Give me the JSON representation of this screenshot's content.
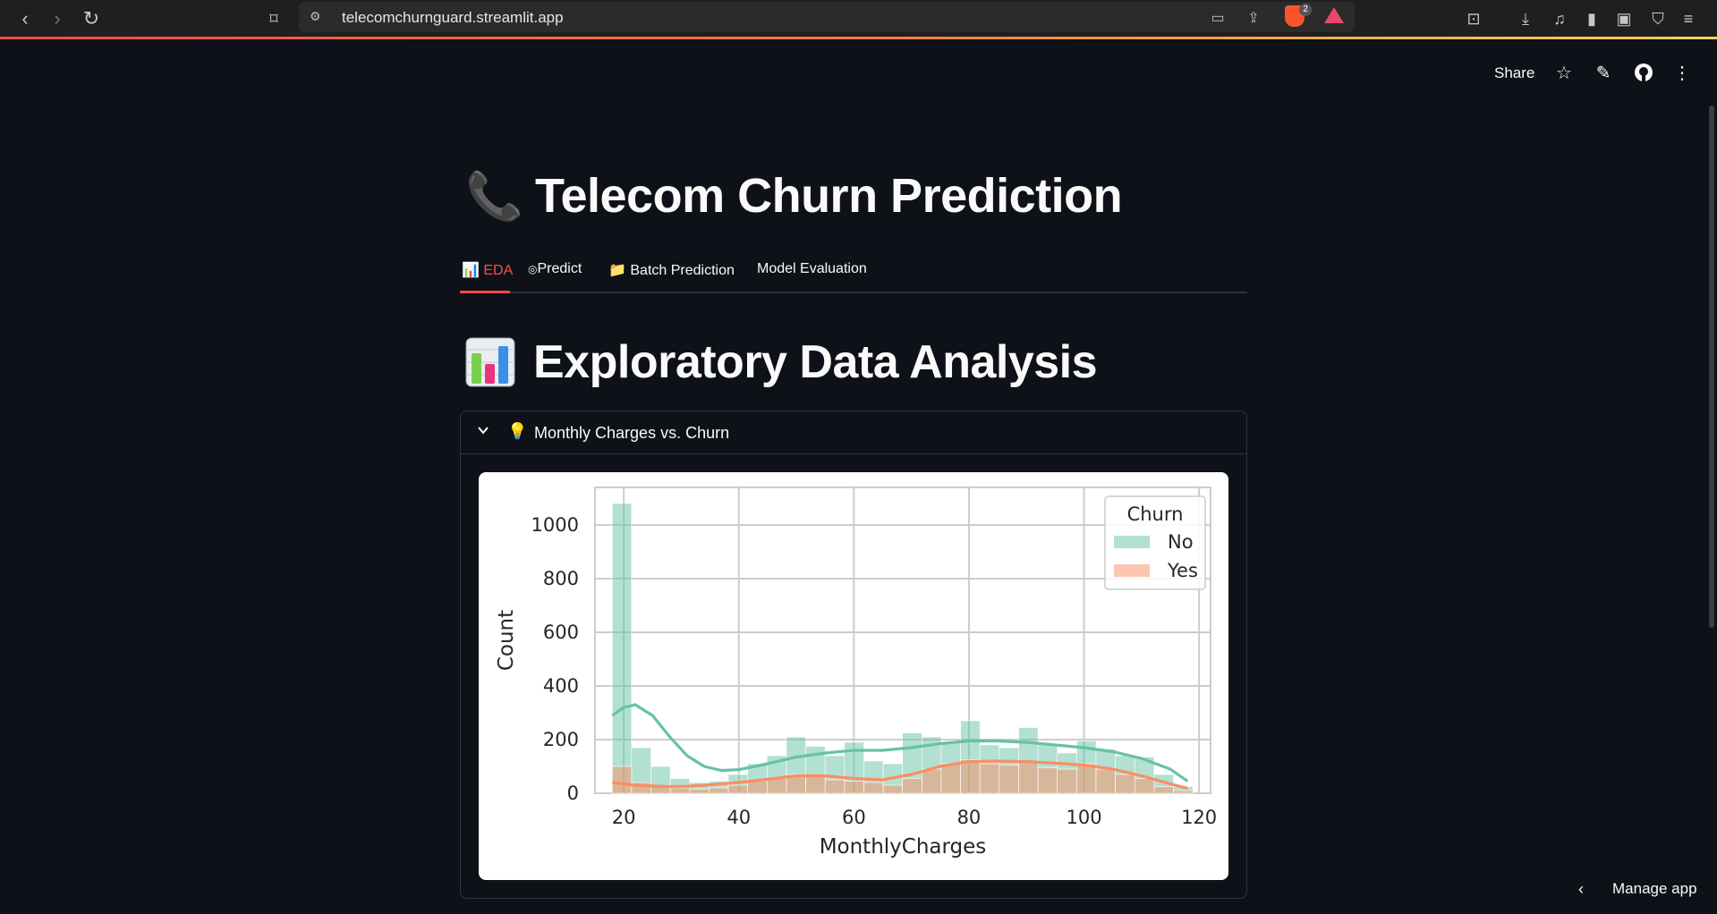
{
  "browser": {
    "url": "telecomchurnguard.streamlit.app",
    "shield_badge": "2"
  },
  "header": {
    "share_label": "Share"
  },
  "app": {
    "title_emoji": "📞",
    "title": "Telecom Churn Prediction",
    "tabs": [
      {
        "icon": "📊",
        "label": "EDA",
        "active": true
      },
      {
        "icon": "◎",
        "label": "Predict",
        "active": false
      },
      {
        "icon": "📁",
        "label": "Batch Prediction",
        "active": false
      },
      {
        "icon": "",
        "label": "Model Evaluation",
        "active": false
      }
    ],
    "section_title": "Exploratory Data Analysis",
    "expander_label": "Monthly Charges vs. Churn",
    "manage_label": "Manage app"
  },
  "chart_data": {
    "type": "bar",
    "subtype": "overlaid histogram with kde",
    "xlabel": "MonthlyCharges",
    "ylabel": "Count",
    "xlim": [
      15,
      122
    ],
    "ylim": [
      0,
      1140
    ],
    "xticks": [
      20,
      40,
      60,
      80,
      100,
      120
    ],
    "yticks": [
      0,
      200,
      400,
      600,
      800,
      1000
    ],
    "grid": true,
    "legend": {
      "title": "Churn",
      "placement": "top-right"
    },
    "bin_edges": [
      18,
      21.36,
      24.73,
      28.09,
      31.45,
      34.82,
      38.18,
      41.55,
      44.91,
      48.27,
      51.64,
      55,
      58.36,
      61.73,
      65.09,
      68.45,
      71.82,
      75.18,
      78.55,
      81.91,
      85.27,
      88.64,
      92,
      95.36,
      98.73,
      102.09,
      105.45,
      108.82,
      112.18,
      115.55,
      118.91
    ],
    "series": [
      {
        "name": "No",
        "color": "#66c2a5",
        "values": [
          1080,
          170,
          100,
          55,
          40,
          45,
          70,
          110,
          140,
          210,
          175,
          140,
          190,
          120,
          110,
          225,
          210,
          190,
          270,
          180,
          170,
          245,
          180,
          150,
          195,
          165,
          140,
          135,
          70,
          25
        ],
        "kde": [
          [
            18,
            290
          ],
          [
            20,
            320
          ],
          [
            22,
            330
          ],
          [
            25,
            290
          ],
          [
            28,
            210
          ],
          [
            31,
            140
          ],
          [
            34,
            100
          ],
          [
            37,
            85
          ],
          [
            40,
            88
          ],
          [
            45,
            110
          ],
          [
            50,
            135
          ],
          [
            55,
            150
          ],
          [
            60,
            160
          ],
          [
            65,
            160
          ],
          [
            70,
            170
          ],
          [
            75,
            185
          ],
          [
            80,
            195
          ],
          [
            85,
            195
          ],
          [
            90,
            190
          ],
          [
            95,
            180
          ],
          [
            100,
            170
          ],
          [
            105,
            155
          ],
          [
            110,
            130
          ],
          [
            115,
            90
          ],
          [
            118,
            45
          ]
        ]
      },
      {
        "name": "Yes",
        "color": "#fc8d62",
        "values": [
          100,
          40,
          30,
          20,
          15,
          20,
          30,
          45,
          55,
          70,
          65,
          50,
          45,
          40,
          30,
          55,
          90,
          110,
          125,
          110,
          105,
          115,
          95,
          90,
          110,
          90,
          70,
          55,
          25,
          10
        ],
        "kde": [
          [
            18,
            40
          ],
          [
            20,
            35
          ],
          [
            22,
            30
          ],
          [
            25,
            27
          ],
          [
            28,
            25
          ],
          [
            31,
            26
          ],
          [
            34,
            30
          ],
          [
            37,
            35
          ],
          [
            40,
            40
          ],
          [
            45,
            52
          ],
          [
            50,
            65
          ],
          [
            55,
            65
          ],
          [
            60,
            55
          ],
          [
            65,
            50
          ],
          [
            70,
            70
          ],
          [
            75,
            100
          ],
          [
            80,
            118
          ],
          [
            85,
            120
          ],
          [
            90,
            118
          ],
          [
            95,
            112
          ],
          [
            100,
            105
          ],
          [
            105,
            90
          ],
          [
            110,
            65
          ],
          [
            115,
            35
          ],
          [
            118,
            18
          ]
        ]
      }
    ]
  }
}
